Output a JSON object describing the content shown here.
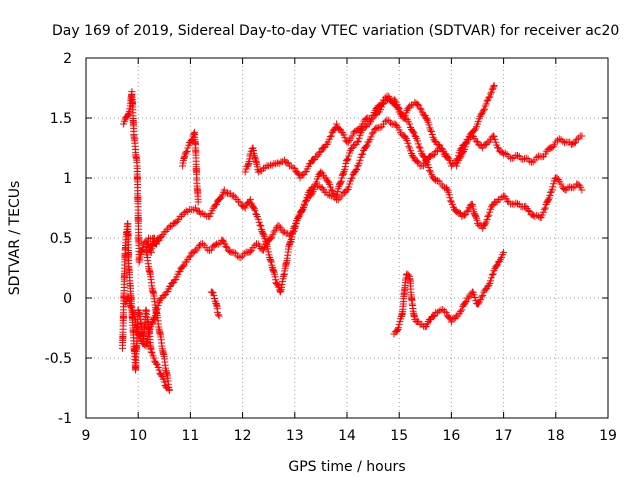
{
  "chart_data": {
    "type": "scatter",
    "title": "Day 169 of 2019, Sidereal Day-to-day VTEC variation (SDTVAR) for receiver ac20",
    "xlabel": "GPS time / hours",
    "ylabel": "SDTVAR / TECUs",
    "xlim": [
      9,
      19
    ],
    "ylim": [
      -1,
      2
    ],
    "xticks": [
      "9",
      "10",
      "11",
      "12",
      "13",
      "14",
      "15",
      "16",
      "17",
      "18",
      "19"
    ],
    "yticks": [
      "-1",
      "-0.5",
      "0",
      "0.5",
      "1",
      "1.5",
      "2"
    ],
    "grid": true,
    "marker": "+",
    "color": "#ff0000",
    "series": [
      {
        "name": "track-a-upper",
        "points": [
          [
            9.72,
            1.45
          ],
          [
            9.8,
            1.52
          ],
          [
            9.85,
            1.6
          ],
          [
            9.88,
            1.72
          ],
          [
            9.92,
            1.35
          ],
          [
            9.98,
            1.1
          ],
          [
            10.02,
            0.3
          ],
          [
            10.1,
            0.45
          ],
          [
            10.2,
            0.5
          ],
          [
            10.35,
            0.48
          ],
          [
            10.5,
            0.55
          ],
          [
            10.65,
            0.6
          ],
          [
            10.8,
            0.68
          ],
          [
            10.95,
            0.72
          ],
          [
            11.1,
            0.75
          ],
          [
            11.2,
            0.7
          ],
          [
            11.35,
            0.68
          ],
          [
            11.5,
            0.78
          ],
          [
            11.65,
            0.9
          ],
          [
            11.8,
            0.85
          ],
          [
            11.95,
            0.8
          ],
          [
            12.05,
            0.75
          ],
          [
            12.15,
            0.82
          ],
          [
            12.25,
            0.7
          ],
          [
            12.35,
            0.6
          ],
          [
            12.45,
            0.45
          ],
          [
            12.55,
            0.3
          ],
          [
            12.65,
            0.12
          ],
          [
            12.72,
            0.05
          ],
          [
            12.8,
            0.2
          ],
          [
            12.9,
            0.45
          ],
          [
            13.0,
            0.6
          ],
          [
            13.1,
            0.7
          ],
          [
            13.2,
            0.8
          ],
          [
            13.3,
            0.85
          ],
          [
            13.4,
            0.95
          ],
          [
            13.5,
            1.05
          ],
          [
            13.6,
            1.0
          ],
          [
            13.7,
            0.9
          ],
          [
            13.8,
            0.85
          ],
          [
            13.9,
            1.0
          ],
          [
            14.0,
            1.15
          ],
          [
            14.1,
            1.25
          ],
          [
            14.2,
            1.3
          ],
          [
            14.3,
            1.4
          ],
          [
            14.4,
            1.45
          ],
          [
            14.5,
            1.5
          ],
          [
            14.6,
            1.55
          ],
          [
            14.7,
            1.62
          ],
          [
            14.8,
            1.66
          ],
          [
            14.9,
            1.65
          ],
          [
            15.0,
            1.58
          ],
          [
            15.1,
            1.5
          ],
          [
            15.2,
            1.45
          ],
          [
            15.3,
            1.35
          ],
          [
            15.4,
            1.25
          ],
          [
            15.5,
            1.15
          ],
          [
            15.6,
            1.05
          ],
          [
            15.7,
            0.98
          ],
          [
            15.8,
            0.95
          ],
          [
            15.9,
            0.92
          ],
          [
            16.0,
            0.8
          ],
          [
            16.1,
            0.72
          ],
          [
            16.2,
            0.68
          ],
          [
            16.3,
            0.72
          ],
          [
            16.4,
            0.78
          ],
          [
            16.5,
            0.62
          ],
          [
            16.6,
            0.58
          ],
          [
            16.7,
            0.68
          ],
          [
            16.8,
            0.78
          ],
          [
            16.9,
            0.82
          ],
          [
            17.0,
            0.85
          ],
          [
            17.1,
            0.8
          ],
          [
            17.2,
            0.78
          ],
          [
            17.3,
            0.78
          ],
          [
            17.4,
            0.76
          ],
          [
            17.5,
            0.72
          ],
          [
            17.6,
            0.68
          ],
          [
            17.7,
            0.67
          ],
          [
            17.8,
            0.75
          ],
          [
            17.9,
            0.88
          ],
          [
            18.0,
            1.0
          ],
          [
            18.1,
            0.95
          ],
          [
            18.2,
            0.9
          ],
          [
            18.3,
            0.92
          ],
          [
            18.4,
            0.95
          ],
          [
            18.5,
            0.9
          ]
        ]
      },
      {
        "name": "track-b-lower",
        "points": [
          [
            9.75,
            -0.05
          ],
          [
            9.82,
            0.0
          ],
          [
            9.88,
            -0.1
          ],
          [
            9.95,
            -0.2
          ],
          [
            10.0,
            -0.3
          ],
          [
            10.05,
            -0.35
          ],
          [
            10.1,
            -0.38
          ],
          [
            10.15,
            -0.4
          ],
          [
            10.2,
            -0.3
          ],
          [
            10.28,
            -0.2
          ],
          [
            10.35,
            -0.1
          ],
          [
            10.45,
            0.0
          ],
          [
            10.55,
            0.05
          ],
          [
            10.62,
            0.1
          ],
          [
            10.7,
            0.15
          ],
          [
            10.8,
            0.22
          ],
          [
            10.9,
            0.3
          ],
          [
            11.0,
            0.35
          ],
          [
            11.1,
            0.4
          ],
          [
            11.2,
            0.45
          ],
          [
            11.3,
            0.42
          ],
          [
            11.4,
            0.4
          ],
          [
            11.5,
            0.45
          ],
          [
            11.6,
            0.48
          ],
          [
            11.7,
            0.42
          ],
          [
            11.8,
            0.38
          ],
          [
            11.9,
            0.35
          ],
          [
            12.0,
            0.35
          ],
          [
            12.1,
            0.38
          ],
          [
            12.2,
            0.42
          ],
          [
            12.3,
            0.45
          ],
          [
            12.4,
            0.4
          ],
          [
            12.5,
            0.48
          ],
          [
            12.6,
            0.55
          ],
          [
            12.7,
            0.6
          ],
          [
            12.8,
            0.55
          ],
          [
            12.9,
            0.52
          ],
          [
            13.0,
            0.58
          ],
          [
            13.1,
            0.7
          ],
          [
            13.2,
            0.8
          ],
          [
            13.3,
            0.9
          ],
          [
            13.4,
            0.95
          ],
          [
            13.5,
            0.92
          ],
          [
            13.6,
            0.88
          ],
          [
            13.7,
            0.85
          ],
          [
            13.8,
            0.82
          ],
          [
            13.9,
            0.85
          ],
          [
            14.0,
            0.9
          ],
          [
            14.1,
            1.0
          ],
          [
            14.2,
            1.1
          ],
          [
            14.3,
            1.2
          ],
          [
            14.4,
            1.3
          ],
          [
            14.5,
            1.38
          ],
          [
            14.6,
            1.42
          ],
          [
            14.7,
            1.45
          ],
          [
            14.8,
            1.48
          ],
          [
            14.9,
            1.45
          ],
          [
            15.0,
            1.4
          ],
          [
            15.1,
            1.35
          ],
          [
            15.2,
            1.25
          ],
          [
            15.3,
            1.15
          ],
          [
            15.4,
            1.1
          ],
          [
            15.5,
            1.12
          ],
          [
            15.6,
            1.18
          ],
          [
            15.7,
            1.22
          ],
          [
            15.8,
            1.25
          ],
          [
            15.9,
            1.2
          ],
          [
            16.0,
            1.1
          ],
          [
            16.1,
            1.15
          ],
          [
            16.2,
            1.25
          ],
          [
            16.3,
            1.32
          ],
          [
            16.4,
            1.35
          ],
          [
            16.5,
            1.3
          ],
          [
            16.6,
            1.25
          ],
          [
            16.7,
            1.3
          ],
          [
            16.8,
            1.35
          ],
          [
            16.9,
            1.25
          ],
          [
            17.0,
            1.2
          ],
          [
            17.1,
            1.18
          ],
          [
            17.2,
            1.17
          ],
          [
            17.3,
            1.18
          ],
          [
            17.4,
            1.16
          ],
          [
            17.5,
            1.14
          ],
          [
            17.6,
            1.15
          ],
          [
            17.7,
            1.18
          ],
          [
            17.8,
            1.2
          ],
          [
            17.9,
            1.25
          ],
          [
            18.0,
            1.3
          ],
          [
            18.1,
            1.32
          ],
          [
            18.2,
            1.3
          ],
          [
            18.3,
            1.28
          ],
          [
            18.4,
            1.32
          ],
          [
            18.5,
            1.35
          ]
        ]
      },
      {
        "name": "track-c-mid",
        "points": [
          [
            12.05,
            1.05
          ],
          [
            12.1,
            1.1
          ],
          [
            12.15,
            1.2
          ],
          [
            12.2,
            1.25
          ],
          [
            12.25,
            1.15
          ],
          [
            12.3,
            1.05
          ],
          [
            12.4,
            1.08
          ],
          [
            12.5,
            1.1
          ],
          [
            12.6,
            1.12
          ],
          [
            12.7,
            1.12
          ],
          [
            12.8,
            1.15
          ],
          [
            12.9,
            1.1
          ],
          [
            13.0,
            1.08
          ],
          [
            13.1,
            1.0
          ],
          [
            13.2,
            1.05
          ],
          [
            13.3,
            1.12
          ],
          [
            13.4,
            1.18
          ],
          [
            13.5,
            1.22
          ],
          [
            13.6,
            1.28
          ],
          [
            13.7,
            1.35
          ],
          [
            13.8,
            1.45
          ],
          [
            13.9,
            1.38
          ],
          [
            14.0,
            1.3
          ],
          [
            14.1,
            1.35
          ],
          [
            14.2,
            1.4
          ],
          [
            14.3,
            1.45
          ],
          [
            14.4,
            1.5
          ],
          [
            14.5,
            1.52
          ],
          [
            14.6,
            1.6
          ],
          [
            14.7,
            1.65
          ],
          [
            14.8,
            1.68
          ],
          [
            14.9,
            1.62
          ],
          [
            15.0,
            1.55
          ],
          [
            15.1,
            1.5
          ],
          [
            15.2,
            1.6
          ],
          [
            15.3,
            1.63
          ],
          [
            15.4,
            1.58
          ],
          [
            15.5,
            1.52
          ],
          [
            15.6,
            1.4
          ],
          [
            15.7,
            1.3
          ],
          [
            15.8,
            1.25
          ],
          [
            15.9,
            1.18
          ]
        ]
      },
      {
        "name": "track-d-recovery",
        "points": [
          [
            14.9,
            -0.3
          ],
          [
            14.95,
            -0.28
          ],
          [
            15.0,
            -0.22
          ],
          [
            15.05,
            -0.15
          ],
          [
            15.08,
            -0.05
          ],
          [
            15.1,
            0.05
          ],
          [
            15.12,
            0.15
          ],
          [
            15.15,
            0.2
          ],
          [
            15.2,
            0.18
          ],
          [
            15.25,
            -0.05
          ],
          [
            15.3,
            -0.18
          ],
          [
            15.4,
            -0.22
          ],
          [
            15.5,
            -0.24
          ],
          [
            15.6,
            -0.18
          ],
          [
            15.7,
            -0.12
          ],
          [
            15.8,
            -0.1
          ],
          [
            15.9,
            -0.12
          ],
          [
            16.0,
            -0.2
          ],
          [
            16.1,
            -0.15
          ],
          [
            16.2,
            -0.1
          ],
          [
            16.3,
            0.0
          ],
          [
            16.4,
            0.05
          ],
          [
            16.5,
            -0.05
          ],
          [
            16.6,
            0.02
          ],
          [
            16.7,
            0.1
          ],
          [
            16.8,
            0.2
          ],
          [
            16.9,
            0.3
          ],
          [
            17.0,
            0.38
          ]
        ]
      },
      {
        "name": "early-cluster",
        "points": [
          [
            9.7,
            -0.42
          ],
          [
            9.75,
            0.4
          ],
          [
            9.78,
            0.55
          ],
          [
            9.8,
            0.62
          ],
          [
            9.82,
            0.25
          ],
          [
            9.85,
            0.1
          ],
          [
            9.9,
            -0.25
          ],
          [
            9.95,
            -0.6
          ],
          [
            10.0,
            -0.1
          ],
          [
            10.05,
            -0.2
          ],
          [
            10.1,
            -0.35
          ],
          [
            10.15,
            -0.1
          ],
          [
            10.2,
            -0.22
          ],
          [
            10.25,
            -0.45
          ],
          [
            10.3,
            -0.5
          ],
          [
            10.35,
            -0.55
          ],
          [
            10.4,
            -0.6
          ],
          [
            10.45,
            -0.65
          ],
          [
            10.5,
            -0.7
          ],
          [
            10.55,
            -0.75
          ],
          [
            10.6,
            -0.77
          ],
          [
            10.15,
            0.4
          ],
          [
            10.2,
            0.45
          ],
          [
            10.25,
            0.38
          ],
          [
            10.3,
            0.5
          ],
          [
            10.35,
            0.45
          ],
          [
            10.4,
            0.48
          ]
        ]
      },
      {
        "name": "spike-11",
        "points": [
          [
            10.85,
            1.1
          ],
          [
            10.9,
            1.2
          ],
          [
            10.95,
            1.25
          ],
          [
            11.0,
            1.3
          ],
          [
            11.05,
            1.35
          ],
          [
            11.08,
            1.38
          ],
          [
            11.1,
            1.25
          ],
          [
            11.12,
            1.0
          ],
          [
            11.15,
            0.8
          ]
        ]
      },
      {
        "name": "fragment-11-5",
        "points": [
          [
            11.4,
            0.05
          ],
          [
            11.45,
            0.02
          ],
          [
            11.5,
            -0.05
          ],
          [
            11.52,
            -0.12
          ],
          [
            11.55,
            -0.15
          ]
        ]
      },
      {
        "name": "rise-16-7",
        "points": [
          [
            16.1,
            1.1
          ],
          [
            16.2,
            1.2
          ],
          [
            16.3,
            1.3
          ],
          [
            16.4,
            1.38
          ],
          [
            16.5,
            1.45
          ],
          [
            16.6,
            1.55
          ],
          [
            16.65,
            1.6
          ],
          [
            16.7,
            1.65
          ],
          [
            16.75,
            1.7
          ],
          [
            16.8,
            1.75
          ],
          [
            16.82,
            1.77
          ]
        ]
      }
    ]
  }
}
